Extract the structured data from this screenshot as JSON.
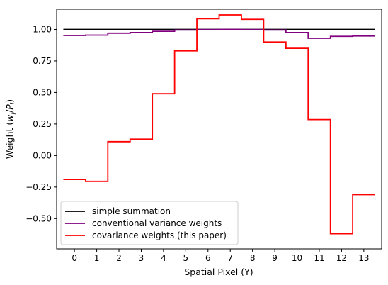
{
  "chart_data": {
    "type": "line",
    "step": "mid",
    "xlabel": "Spatial Pixel (Y)",
    "ylabel": "Weight (w_j/P_j)",
    "xlim": [
      -0.8,
      13.8
    ],
    "ylim": [
      -0.74,
      1.16
    ],
    "x_ticks": [
      0,
      1,
      2,
      3,
      4,
      5,
      6,
      7,
      8,
      9,
      10,
      11,
      12,
      13
    ],
    "y_ticks": [
      -0.5,
      -0.25,
      0.0,
      0.25,
      0.5,
      0.75,
      1.0
    ],
    "y_tick_labels": [
      "−0.50",
      "−0.25",
      "0.00",
      "0.25",
      "0.50",
      "0.75",
      "1.00"
    ],
    "x": [
      0,
      1,
      2,
      3,
      4,
      5,
      6,
      7,
      8,
      9,
      10,
      11,
      12,
      13
    ],
    "series": [
      {
        "name": "simple summation",
        "color": "#000000",
        "values": [
          1.0,
          1.0,
          1.0,
          1.0,
          1.0,
          1.0,
          1.0,
          1.0,
          1.0,
          1.0,
          1.0,
          1.0,
          1.0,
          1.0
        ]
      },
      {
        "name": "conventional variance weights",
        "color": "#800080",
        "values": [
          0.952,
          0.955,
          0.97,
          0.975,
          0.985,
          0.995,
          0.998,
          1.0,
          0.998,
          0.995,
          0.975,
          0.93,
          0.945,
          0.948
        ]
      },
      {
        "name": "covariance weights (this paper)",
        "color": "#ff0000",
        "values": [
          -0.19,
          -0.205,
          0.11,
          0.13,
          0.49,
          0.83,
          1.085,
          1.115,
          1.08,
          0.9,
          0.85,
          0.285,
          -0.62,
          -0.31
        ]
      }
    ],
    "legend_position": "lower-left",
    "grid": false
  }
}
